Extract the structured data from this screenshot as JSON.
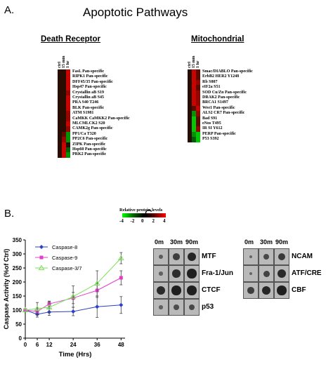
{
  "panelA": {
    "letter": "A.",
    "title": "Apoptotic Pathways",
    "columns": [
      "ctrl",
      "15 min",
      "1 hr"
    ],
    "legend": {
      "title": "Relative protein levels",
      "ticks": [
        "-4",
        "-2",
        "0",
        "2",
        "4"
      ]
    },
    "death_receptor": {
      "title": "Death Receptor",
      "rows": [
        {
          "label": "FasL Pan-specific",
          "values": [
            0,
            0,
            3
          ]
        },
        {
          "label": "RIPK1 Pan-specific",
          "values": [
            0,
            0,
            3
          ]
        },
        {
          "label": "DFF45/35 Pan-specific",
          "values": [
            0,
            0,
            3
          ]
        },
        {
          "label": "Hsp47 Pan-specific",
          "values": [
            0,
            0,
            3
          ]
        },
        {
          "label": "Crystallin aB S19",
          "values": [
            0,
            0,
            2
          ]
        },
        {
          "label": "Crystallin aB S45",
          "values": [
            0,
            0,
            3
          ]
        },
        {
          "label": "PRA S40 T246",
          "values": [
            0,
            0,
            3
          ]
        },
        {
          "label": "BLK Pan-specific",
          "values": [
            0,
            0,
            3
          ]
        },
        {
          "label": "ATM S1981",
          "values": [
            0,
            0,
            2
          ]
        },
        {
          "label": "CaMKK CaMKK2 Pan-specific",
          "values": [
            0,
            0,
            2
          ]
        },
        {
          "label": "MLCMLCK2 S20",
          "values": [
            0,
            0,
            3
          ]
        },
        {
          "label": "CAMK2g Pan-specific",
          "values": [
            0,
            0,
            2
          ]
        },
        {
          "label": "PP1/Ca T320",
          "values": [
            0,
            1,
            -2
          ]
        },
        {
          "label": "PP2C6 Pan-specific",
          "values": [
            0,
            2,
            -2
          ]
        },
        {
          "label": "ZIPK Pan-specific",
          "values": [
            0,
            3,
            0
          ]
        },
        {
          "label": "Hsp60 Pan-specific",
          "values": [
            0,
            3,
            -1
          ]
        },
        {
          "label": "PRK2 Pan-specific",
          "values": [
            0,
            3,
            -2
          ]
        }
      ]
    },
    "mitochondrial": {
      "title": "Mitochondrial",
      "rows": [
        {
          "label": "Smac/DIABLO Pan-specific",
          "values": [
            0,
            3,
            1
          ]
        },
        {
          "label": "ErbB2 HER2 Y1248",
          "values": [
            0,
            3,
            1
          ]
        },
        {
          "label": "Rb S807",
          "values": [
            0,
            3,
            2
          ]
        },
        {
          "label": "eIF2a S51",
          "values": [
            0,
            3,
            1
          ]
        },
        {
          "label": "SOD Cu/Zn Pan-specific",
          "values": [
            0,
            3,
            2
          ]
        },
        {
          "label": "DRAK2 Pan-specific",
          "values": [
            0,
            3,
            2
          ]
        },
        {
          "label": "BRCA1 S1497",
          "values": [
            0,
            3,
            2
          ]
        },
        {
          "label": "Wee1 Pan-specific",
          "values": [
            0,
            1,
            3
          ]
        },
        {
          "label": "ALS2 CR7 Pan-specific",
          "values": [
            0,
            -2,
            2
          ]
        },
        {
          "label": "Bad S91",
          "values": [
            0,
            -3,
            1
          ]
        },
        {
          "label": "eNos T495",
          "values": [
            0,
            -3,
            1
          ]
        },
        {
          "label": "IR SI Y612",
          "values": [
            0,
            -3,
            2
          ]
        },
        {
          "label": "PERP Pan-specific",
          "values": [
            0,
            -2,
            -3
          ]
        },
        {
          "label": "P53 S392",
          "values": [
            0,
            -1,
            -3
          ]
        }
      ]
    }
  },
  "panelB": {
    "letter": "B.",
    "chart_data": {
      "type": "line",
      "xlabel": "Time (Hrs)",
      "ylabel": "Caspase Activity (%of Ctrl)",
      "x": [
        0,
        6,
        12,
        24,
        36,
        48
      ],
      "xticks": [
        "0",
        "6",
        "12",
        "24",
        "36",
        "48"
      ],
      "yticks": [
        "0",
        "50",
        "100",
        "150",
        "200",
        "250",
        "300",
        "350"
      ],
      "ylim": [
        0,
        350
      ],
      "grid": false,
      "legend_position": "top-left",
      "series": [
        {
          "name": "Caspase-8",
          "color": "#2b3fc8",
          "marker": "diamond",
          "values": [
            100,
            85,
            93,
            95,
            112,
            118
          ],
          "errors": [
            0,
            10,
            12,
            15,
            38,
            30
          ]
        },
        {
          "name": "Caspase-9",
          "color": "#e040c8",
          "marker": "square",
          "values": [
            100,
            95,
            122,
            143,
            170,
            215
          ],
          "errors": [
            0,
            12,
            10,
            20,
            25,
            25
          ]
        },
        {
          "name": "Caspase-3/7",
          "color": "#7ce05a",
          "marker": "triangle",
          "values": [
            100,
            105,
            110,
            148,
            195,
            285
          ],
          "errors": [
            0,
            22,
            20,
            38,
            45,
            20
          ]
        }
      ]
    }
  },
  "panelC": {
    "letter": "C.",
    "left_blot": {
      "cols": [
        "0m",
        "30m",
        "90m"
      ],
      "rows": [
        {
          "label": "MTF",
          "dots": [
            0.25,
            0.55,
            0.8
          ]
        },
        {
          "label": "Fra-1/Jun",
          "dots": [
            0.2,
            0.7,
            0.85
          ]
        },
        {
          "label": "CTCF",
          "dots": [
            0.75,
            0.85,
            0.85
          ]
        },
        {
          "label": "p53",
          "dots": [
            0.2,
            0.4,
            0.45
          ]
        }
      ]
    },
    "right_blot": {
      "cols": [
        "0m",
        "30m",
        "90m"
      ],
      "rows": [
        {
          "label": "NCAM",
          "dots": [
            0.15,
            0.45,
            0.6
          ]
        },
        {
          "label": "ATF/CRE",
          "dots": [
            0.15,
            0.5,
            0.75
          ]
        },
        {
          "label": "CBF",
          "dots": [
            0.55,
            0.8,
            0.85
          ]
        }
      ]
    }
  }
}
